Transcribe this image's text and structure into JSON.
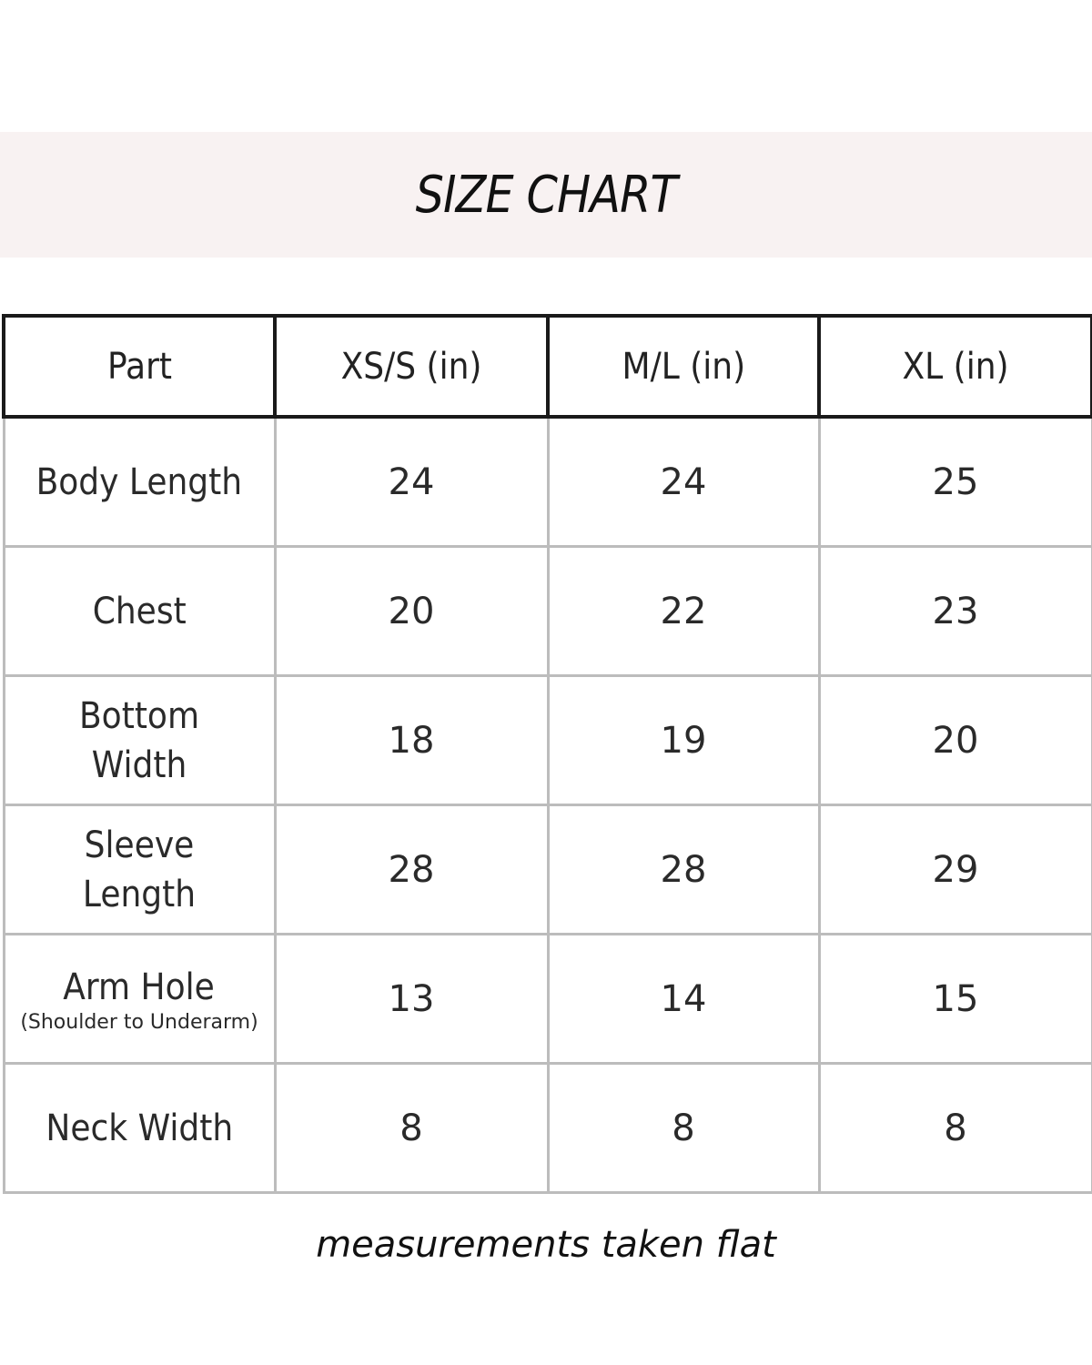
{
  "title": "SIZE CHART",
  "footnote": "measurements taken flat",
  "chart_data": {
    "type": "table",
    "title": "SIZE CHART",
    "columns": [
      "Part",
      "XS/S (in)",
      "M/L (in)",
      "XL (in)"
    ],
    "rows": [
      {
        "part": "Body Length",
        "note": "",
        "values": [
          "24",
          "24",
          "25"
        ]
      },
      {
        "part": "Chest",
        "note": "",
        "values": [
          "20",
          "22",
          "23"
        ]
      },
      {
        "part": "Bottom Width",
        "note": "",
        "values": [
          "18",
          "19",
          "20"
        ]
      },
      {
        "part": "Sleeve Length",
        "note": "",
        "values": [
          "28",
          "28",
          "29"
        ]
      },
      {
        "part": "Arm Hole",
        "note": "(Shoulder to Underarm)",
        "values": [
          "13",
          "14",
          "15"
        ]
      },
      {
        "part": "Neck Width",
        "note": "",
        "values": [
          "8",
          "8",
          "8"
        ]
      }
    ],
    "annotation": "measurements taken flat"
  },
  "colors": {
    "banner": "#f8f2f2",
    "header_border": "#1a1a1a",
    "cell_border": "#bcbcbc"
  }
}
